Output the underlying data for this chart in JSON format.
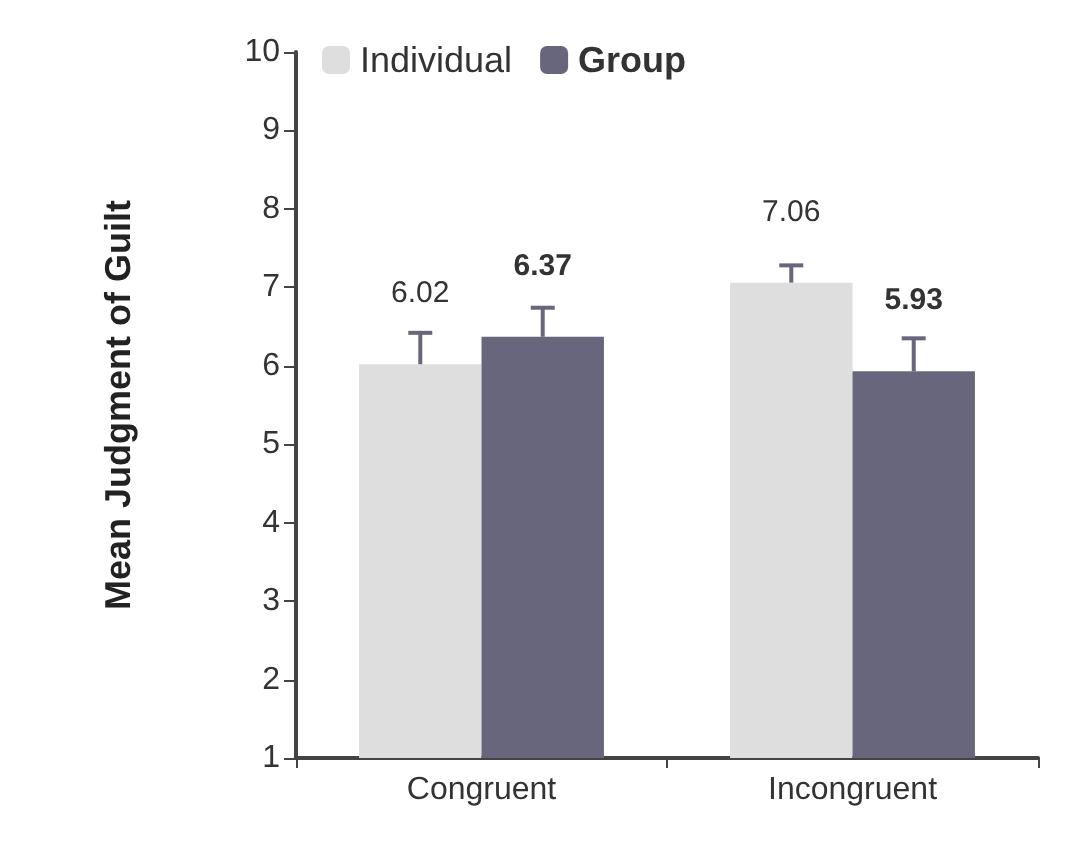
{
  "chart_data": {
    "type": "bar",
    "ylabel": "Mean Judgment of Guilt",
    "categories": [
      "Congruent",
      "Incongruent"
    ],
    "series": [
      {
        "name": "Individual",
        "color": "#dedede",
        "values": [
          6.02,
          7.06
        ],
        "errors": [
          [
            6.02,
            6.42
          ],
          [
            7.06,
            7.28
          ]
        ]
      },
      {
        "name": "Group",
        "color": "#67667c",
        "values": [
          6.37,
          5.93
        ],
        "errors": [
          [
            6.37,
            6.74
          ],
          [
            5.93,
            6.35
          ]
        ]
      }
    ],
    "ylim": [
      1,
      10
    ],
    "yticks": [
      1,
      2,
      3,
      4,
      5,
      6,
      7,
      8,
      9,
      10
    ],
    "grid": false,
    "legend": "top left",
    "data_labels": true
  }
}
